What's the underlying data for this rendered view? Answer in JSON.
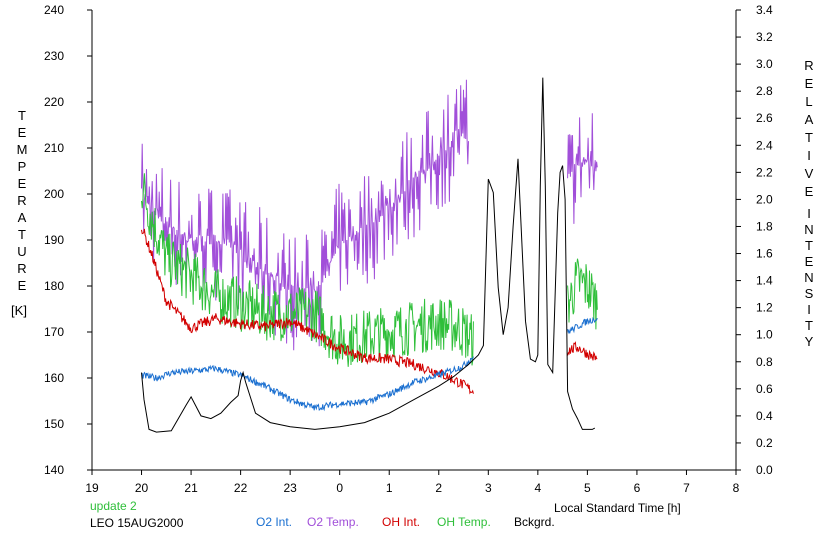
{
  "chart_data": {
    "type": "line",
    "xlabel": "Local Standard Time [h]",
    "ylabel_left_letters": [
      "T",
      "E",
      "M",
      "P",
      "E",
      "R",
      "A",
      "T",
      "U",
      "R",
      "E"
    ],
    "ylabel_left_unit": "[K]",
    "ylabel_right_word1": [
      "R",
      "E",
      "L",
      "A",
      "T",
      "I",
      "V",
      "E"
    ],
    "ylabel_right_word2": [
      "I",
      "N",
      "T",
      "E",
      "N",
      "S",
      "I",
      "T",
      "Y"
    ],
    "x_ticks": [
      19,
      20,
      21,
      22,
      23,
      24,
      25,
      26,
      27,
      28,
      29,
      30,
      31,
      32
    ],
    "x_tick_labels": [
      "19",
      "20",
      "21",
      "22",
      "23",
      "0",
      "1",
      "2",
      "3",
      "4",
      "5",
      "6",
      "7",
      "8"
    ],
    "xlim": [
      19,
      32
    ],
    "ylim_left": [
      140,
      240
    ],
    "y_left_ticks": [
      "140",
      "150",
      "160",
      "170",
      "180",
      "190",
      "200",
      "210",
      "220",
      "230",
      "240"
    ],
    "ylim_right": [
      0,
      3.4
    ],
    "y_right_ticks": [
      "0.0",
      "0.2",
      "0.4",
      "0.6",
      "0.8",
      "1.0",
      "1.2",
      "1.4",
      "1.6",
      "1.8",
      "2.0",
      "2.2",
      "2.4",
      "2.6",
      "2.8",
      "3.0",
      "3.2",
      "3.4"
    ],
    "grid": false,
    "footer": {
      "update": "update 2",
      "station": "LEO 15AUG2000"
    },
    "legend": [
      {
        "name": "O2 Int.",
        "color": "#1a6fd0"
      },
      {
        "name": "O2 Temp.",
        "color": "#a14fd9"
      },
      {
        "name": "OH Int.",
        "color": "#d20000"
      },
      {
        "name": "OH Temp.",
        "color": "#2fbf3a"
      },
      {
        "name": "Bckgrd.",
        "color": "#000000"
      }
    ],
    "series": [
      {
        "name": "O2 Temp.",
        "axis": "left",
        "color": "#a14fd9",
        "noise": 12,
        "segments": [
          {
            "x": [
              20.0,
              20.4,
              20.8,
              21.2,
              21.6,
              22.0,
              22.4,
              22.8,
              23.2,
              23.6,
              24.0,
              24.4,
              24.8,
              25.2,
              25.6,
              26.0,
              26.4,
              26.6
            ],
            "y": [
              200,
              195,
              191,
              190,
              190,
              187,
              184,
              181,
              178,
              180,
              190,
              192,
              195,
              200,
              204,
              208,
              214,
              212
            ]
          },
          {
            "x": [
              28.6,
              28.8,
              29.0,
              29.2
            ],
            "y": [
              203,
              207,
              207,
              205
            ]
          }
        ]
      },
      {
        "name": "OH Temp.",
        "axis": "left",
        "color": "#2fbf3a",
        "noise": 6,
        "segments": [
          {
            "x": [
              20.0,
              20.2,
              20.5,
              21.0,
              21.5,
              22.0,
              22.5,
              23.0,
              23.5,
              23.8,
              24.0,
              24.5,
              25.0,
              25.5,
              26.0,
              26.4,
              26.7
            ],
            "y": [
              202,
              195,
              186,
              182,
              178,
              176,
              174,
              174,
              174,
              170,
              168,
              169,
              170,
              171,
              172,
              171,
              168
            ]
          },
          {
            "x": [
              28.6,
              28.8,
              29.0,
              29.2
            ],
            "y": [
              176,
              181,
              180,
              176
            ]
          }
        ]
      },
      {
        "name": "OH Int.",
        "axis": "right",
        "color": "#d20000",
        "noise": 0.04,
        "segments": [
          {
            "x": [
              20.0,
              20.2,
              20.5,
              21.0,
              21.5,
              22.0,
              22.5,
              23.0,
              23.5,
              24.0,
              24.5,
              25.0,
              25.5,
              26.0,
              26.4,
              26.7
            ],
            "y": [
              1.8,
              1.6,
              1.25,
              1.05,
              1.12,
              1.08,
              1.06,
              1.1,
              1.0,
              0.9,
              0.83,
              0.82,
              0.78,
              0.72,
              0.65,
              0.58
            ]
          },
          {
            "x": [
              28.6,
              28.8,
              29.0,
              29.2
            ],
            "y": [
              0.88,
              0.91,
              0.86,
              0.82
            ]
          }
        ]
      },
      {
        "name": "O2 Int.",
        "axis": "right",
        "color": "#1a6fd0",
        "noise": 0.025,
        "segments": [
          {
            "x": [
              20.0,
              20.3,
              20.6,
              21.0,
              21.5,
              22.0,
              22.5,
              23.0,
              23.5,
              24.0,
              24.5,
              25.0,
              25.5,
              26.0,
              26.5,
              26.7
            ],
            "y": [
              0.7,
              0.68,
              0.72,
              0.73,
              0.75,
              0.7,
              0.62,
              0.52,
              0.46,
              0.49,
              0.5,
              0.56,
              0.65,
              0.7,
              0.77,
              0.84
            ]
          },
          {
            "x": [
              28.6,
              28.8,
              29.0,
              29.2
            ],
            "y": [
              1.02,
              1.06,
              1.1,
              1.12
            ]
          }
        ]
      },
      {
        "name": "Bckgrd.",
        "axis": "right",
        "color": "#000000",
        "noise": 0,
        "segments": [
          {
            "x": [
              20.0,
              20.05,
              20.15,
              20.3,
              20.6,
              20.9,
              21.0,
              21.2,
              21.4,
              21.6,
              21.8,
              21.95,
              22.0,
              22.05,
              22.1,
              22.3,
              22.6,
              23.0,
              23.5,
              24.0,
              24.5,
              25.0,
              25.5,
              26.0,
              26.3,
              26.6,
              26.8,
              26.9,
              27.0,
              27.1,
              27.2,
              27.3,
              27.4,
              27.5,
              27.6,
              27.75,
              27.85,
              27.95,
              28.0,
              28.05,
              28.1,
              28.15,
              28.2,
              28.3,
              28.4,
              28.45,
              28.5,
              28.55,
              28.6,
              28.7,
              28.8,
              28.9,
              29.0,
              29.1,
              29.15
            ],
            "y": [
              0.72,
              0.52,
              0.3,
              0.28,
              0.29,
              0.48,
              0.54,
              0.4,
              0.38,
              0.42,
              0.5,
              0.55,
              0.66,
              0.72,
              0.65,
              0.42,
              0.35,
              0.32,
              0.3,
              0.32,
              0.35,
              0.42,
              0.52,
              0.62,
              0.69,
              0.78,
              0.85,
              0.92,
              2.15,
              2.05,
              1.35,
              1.0,
              1.2,
              1.8,
              2.3,
              1.1,
              0.82,
              0.8,
              0.85,
              2.1,
              2.9,
              2.1,
              0.78,
              0.72,
              1.9,
              2.2,
              2.25,
              2.0,
              0.58,
              0.45,
              0.38,
              0.3,
              0.3,
              0.3,
              0.31
            ]
          }
        ]
      }
    ]
  }
}
